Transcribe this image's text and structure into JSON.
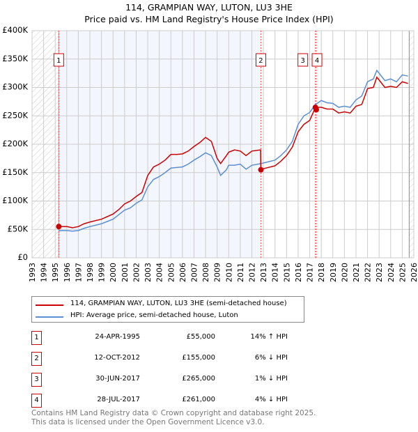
{
  "chart_data": {
    "type": "line",
    "title": "114, GRAMPIAN WAY, LUTON, LU3 3HE",
    "subtitle": "Price paid vs. HM Land Registry's House Price Index (HPI)",
    "xlim": [
      1993,
      2026
    ],
    "ylim": [
      0,
      400000
    ],
    "x_ticks": [
      "1993",
      "1994",
      "1995",
      "1996",
      "1997",
      "1998",
      "1999",
      "2000",
      "2001",
      "2002",
      "2003",
      "2004",
      "2005",
      "2006",
      "2007",
      "2008",
      "2009",
      "2010",
      "2011",
      "2012",
      "2013",
      "2014",
      "2015",
      "2016",
      "2017",
      "2018",
      "2019",
      "2020",
      "2021",
      "2022",
      "2023",
      "2024",
      "2025",
      "2026"
    ],
    "y_ticks": [
      {
        "v": 0,
        "label": "£0"
      },
      {
        "v": 50000,
        "label": "£50K"
      },
      {
        "v": 100000,
        "label": "£100K"
      },
      {
        "v": 150000,
        "label": "£150K"
      },
      {
        "v": 200000,
        "label": "£200K"
      },
      {
        "v": 250000,
        "label": "£250K"
      },
      {
        "v": 300000,
        "label": "£300K"
      },
      {
        "v": 350000,
        "label": "£350K"
      },
      {
        "v": 400000,
        "label": "£400K"
      }
    ],
    "grid": true,
    "series": [
      {
        "name": "114, GRAMPIAN WAY, LUTON, LU3 3HE (semi-detached house)",
        "color": "#cc0000",
        "points": [
          [
            1995.3,
            55
          ],
          [
            1996,
            55
          ],
          [
            1996.5,
            53
          ],
          [
            1997,
            55
          ],
          [
            1997.5,
            60
          ],
          [
            1998,
            63
          ],
          [
            1999,
            68
          ],
          [
            2000,
            77
          ],
          [
            2000.5,
            85
          ],
          [
            2001,
            95
          ],
          [
            2001.5,
            100
          ],
          [
            2002,
            108
          ],
          [
            2002.5,
            115
          ],
          [
            2003,
            145
          ],
          [
            2003.5,
            160
          ],
          [
            2004,
            165
          ],
          [
            2004.5,
            172
          ],
          [
            2005,
            182
          ],
          [
            2005.5,
            182
          ],
          [
            2006,
            183
          ],
          [
            2006.5,
            188
          ],
          [
            2007,
            196
          ],
          [
            2007.5,
            203
          ],
          [
            2008,
            212
          ],
          [
            2008.5,
            205
          ],
          [
            2009,
            175
          ],
          [
            2009.3,
            166
          ],
          [
            2009.8,
            180
          ],
          [
            2010,
            186
          ],
          [
            2010.5,
            190
          ],
          [
            2011,
            188
          ],
          [
            2011.5,
            180
          ],
          [
            2012,
            188
          ],
          [
            2012.75,
            190
          ],
          [
            2012.78,
            155
          ],
          [
            2013,
            157
          ],
          [
            2014,
            162
          ],
          [
            2014.5,
            170
          ],
          [
            2015,
            180
          ],
          [
            2015.5,
            195
          ],
          [
            2016,
            222
          ],
          [
            2016.5,
            235
          ],
          [
            2017,
            242
          ],
          [
            2017.5,
            265
          ],
          [
            2018,
            265
          ],
          [
            2018.5,
            262
          ],
          [
            2019,
            262
          ],
          [
            2019.5,
            255
          ],
          [
            2020,
            257
          ],
          [
            2020.5,
            255
          ],
          [
            2021,
            267
          ],
          [
            2021.5,
            270
          ],
          [
            2022,
            298
          ],
          [
            2022.5,
            300
          ],
          [
            2022.8,
            318
          ],
          [
            2023,
            313
          ],
          [
            2023.5,
            300
          ],
          [
            2024,
            302
          ],
          [
            2024.5,
            300
          ],
          [
            2025,
            310
          ],
          [
            2025.5,
            307
          ]
        ]
      },
      {
        "name": "HPI: Average price, semi-detached house, Luton",
        "color": "#5b8fd4",
        "points": [
          [
            1995.3,
            48
          ],
          [
            1996,
            48
          ],
          [
            1996.5,
            47
          ],
          [
            1997,
            48
          ],
          [
            1997.5,
            52
          ],
          [
            1998,
            55
          ],
          [
            1999,
            60
          ],
          [
            2000,
            68
          ],
          [
            2000.5,
            76
          ],
          [
            2001,
            84
          ],
          [
            2001.5,
            88
          ],
          [
            2002,
            96
          ],
          [
            2002.5,
            102
          ],
          [
            2003,
            125
          ],
          [
            2003.5,
            138
          ],
          [
            2004,
            143
          ],
          [
            2004.5,
            150
          ],
          [
            2005,
            158
          ],
          [
            2005.5,
            159
          ],
          [
            2006,
            160
          ],
          [
            2006.5,
            165
          ],
          [
            2007,
            172
          ],
          [
            2007.5,
            178
          ],
          [
            2008,
            185
          ],
          [
            2008.5,
            180
          ],
          [
            2009,
            160
          ],
          [
            2009.3,
            145
          ],
          [
            2009.8,
            155
          ],
          [
            2010,
            163
          ],
          [
            2010.5,
            163
          ],
          [
            2011,
            165
          ],
          [
            2011.5,
            156
          ],
          [
            2012,
            163
          ],
          [
            2012.8,
            166
          ],
          [
            2013,
            167
          ],
          [
            2014,
            172
          ],
          [
            2014.5,
            180
          ],
          [
            2015,
            190
          ],
          [
            2015.5,
            205
          ],
          [
            2016,
            235
          ],
          [
            2016.5,
            250
          ],
          [
            2017,
            256
          ],
          [
            2017.5,
            270
          ],
          [
            2018,
            277
          ],
          [
            2018.5,
            273
          ],
          [
            2019,
            272
          ],
          [
            2019.5,
            265
          ],
          [
            2020,
            267
          ],
          [
            2020.5,
            265
          ],
          [
            2021,
            278
          ],
          [
            2021.5,
            285
          ],
          [
            2022,
            310
          ],
          [
            2022.5,
            315
          ],
          [
            2022.8,
            330
          ],
          [
            2023,
            325
          ],
          [
            2023.5,
            312
          ],
          [
            2024,
            315
          ],
          [
            2024.5,
            310
          ],
          [
            2025,
            322
          ],
          [
            2025.5,
            320
          ]
        ]
      }
    ],
    "sales": [
      {
        "n": "1",
        "date": "24-APR-1995",
        "x": 1995.31,
        "price": "£55,000",
        "value": 55000,
        "hpi": "14% ↑ HPI"
      },
      {
        "n": "2",
        "date": "12-OCT-2012",
        "x": 2012.78,
        "price": "£155,000",
        "value": 155000,
        "hpi": "6% ↓ HPI"
      },
      {
        "n": "3",
        "date": "30-JUN-2017",
        "x": 2017.49,
        "price": "£265,000",
        "value": 265000,
        "hpi": "1% ↓ HPI"
      },
      {
        "n": "4",
        "date": "28-JUL-2017",
        "x": 2017.57,
        "price": "£261,000",
        "value": 261000,
        "hpi": "4% ↓ HPI"
      }
    ]
  },
  "footer": {
    "line1": "Contains HM Land Registry data © Crown copyright and database right 2025.",
    "line2": "This data is licensed under the Open Government Licence v3.0."
  }
}
